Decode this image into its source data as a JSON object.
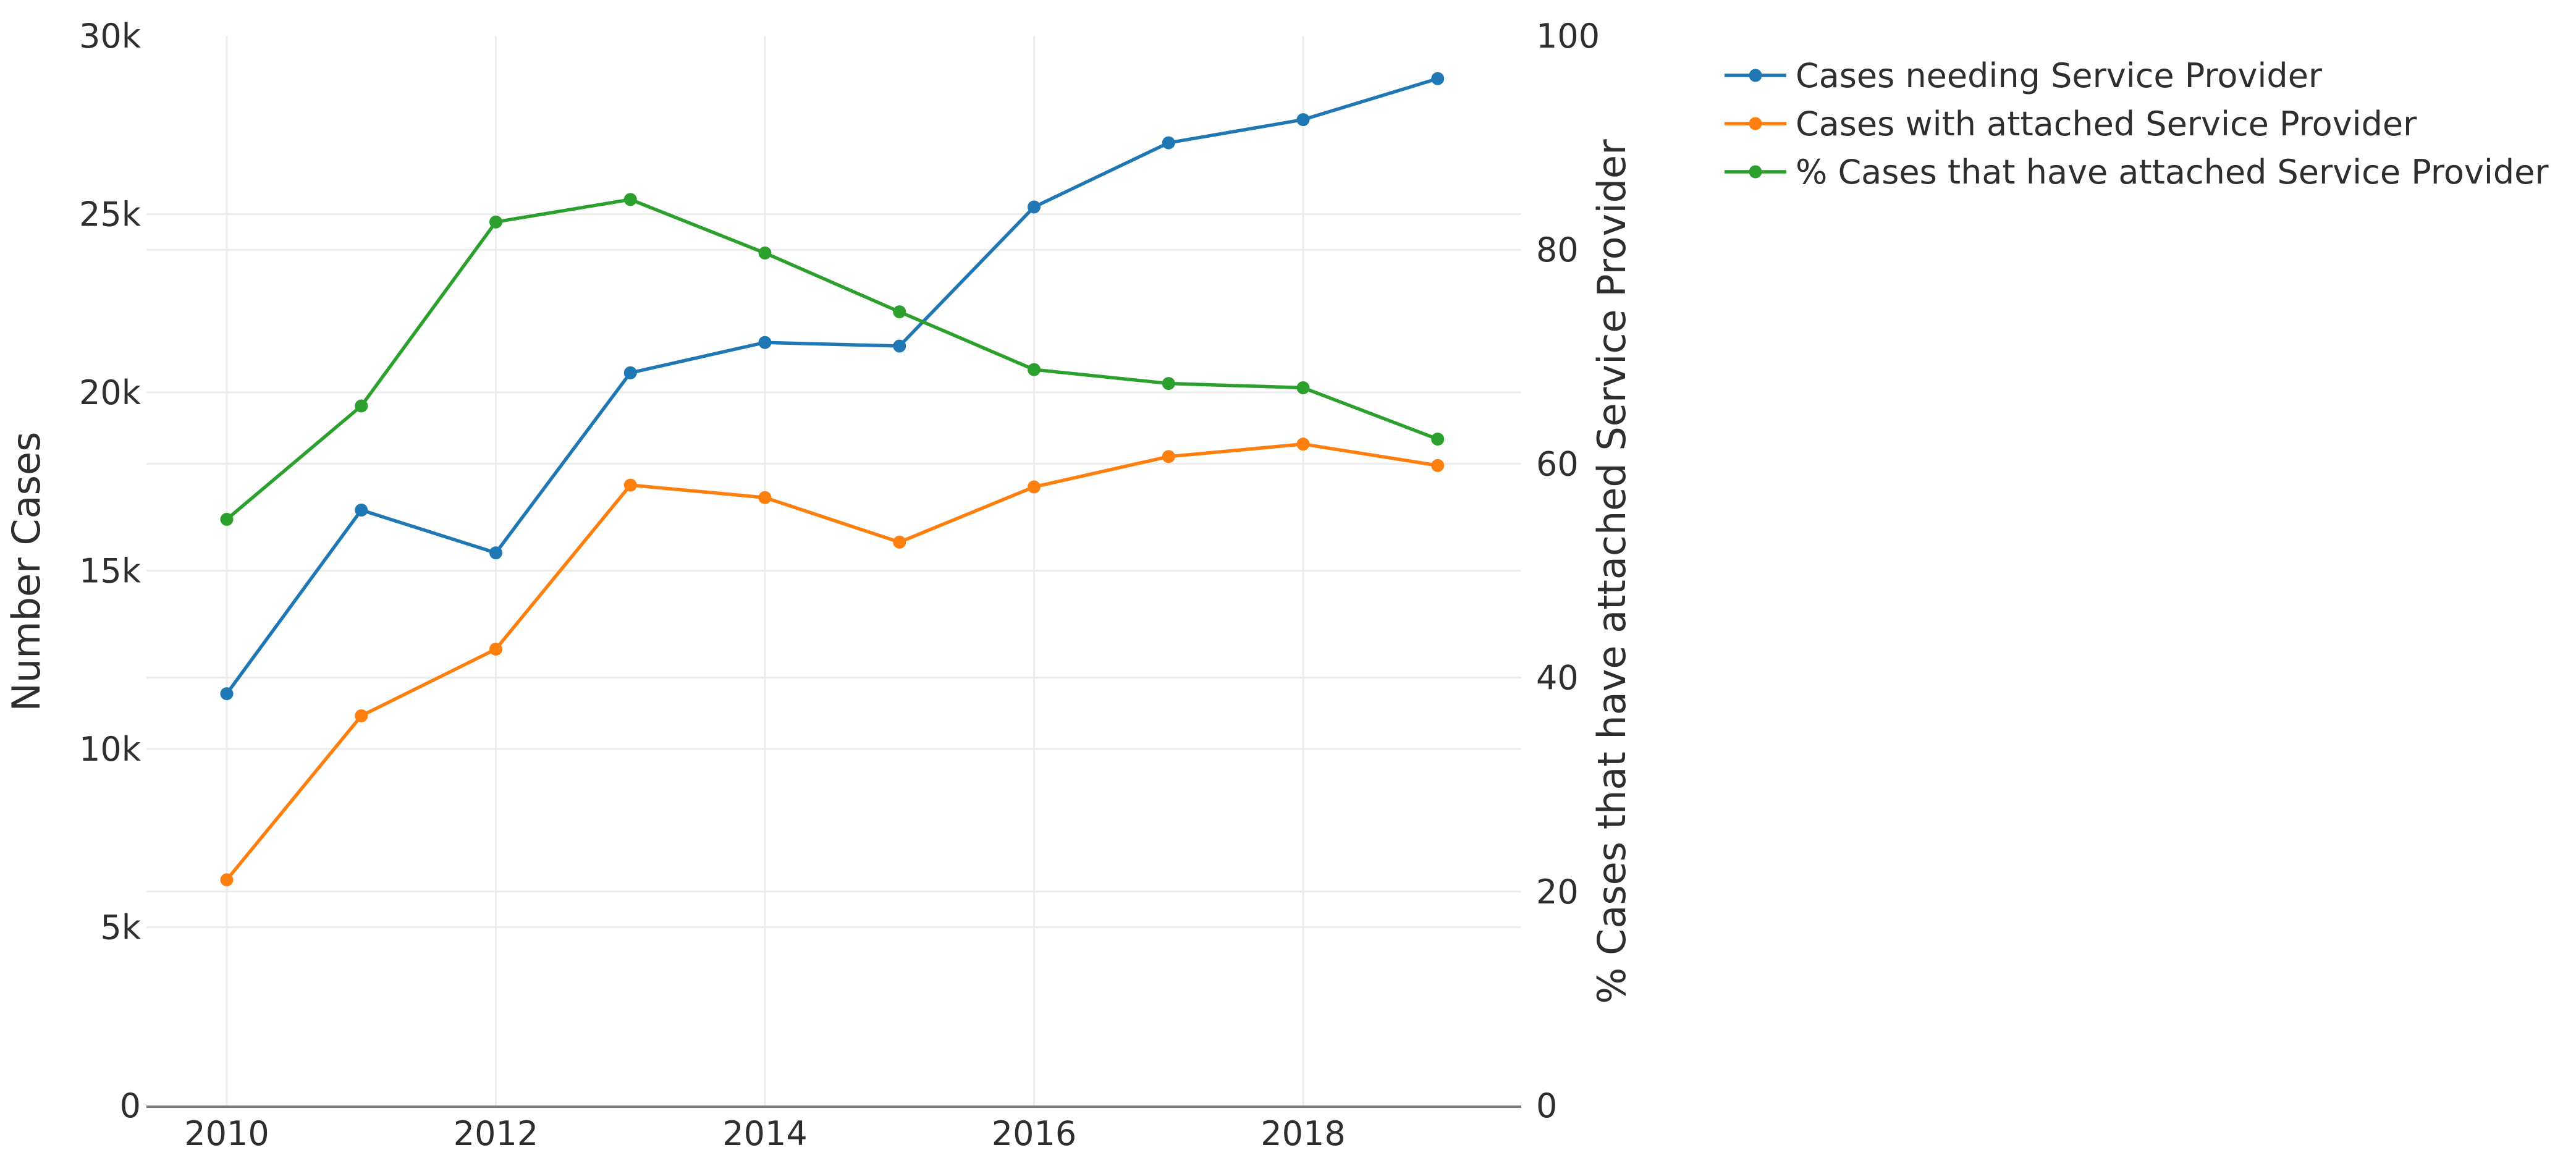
{
  "page": {
    "background": "#ffffff",
    "text_color": "#2e2e2e",
    "grid_color": "#ececec",
    "axis_line_color": "#7a7a7a"
  },
  "chart_data": {
    "type": "line",
    "x": [
      2010,
      2011,
      2012,
      2013,
      2014,
      2015,
      2016,
      2017,
      2018,
      2019
    ],
    "series": [
      {
        "name": "Cases needing Service Provider",
        "color": "#1f77b4",
        "yaxis": "left",
        "values": [
          11550,
          16700,
          15500,
          20550,
          21400,
          21300,
          25200,
          27000,
          27650,
          28800
        ]
      },
      {
        "name": "Cases with attached Service Provider",
        "color": "#ff7f0e",
        "yaxis": "left",
        "values": [
          6330,
          10930,
          12800,
          17400,
          17050,
          15800,
          17350,
          18200,
          18550,
          17950
        ]
      },
      {
        "name": "% Cases that have attached Service Provider",
        "color": "#2ca02c",
        "yaxis": "right",
        "values": [
          54.8,
          65.4,
          82.6,
          84.7,
          79.7,
          74.2,
          68.8,
          67.5,
          67.1,
          62.3
        ]
      }
    ],
    "left_axis": {
      "title": "Number Cases",
      "range": [
        0,
        30000
      ],
      "ticks": [
        {
          "v": 0,
          "label": "0"
        },
        {
          "v": 5000,
          "label": "5k"
        },
        {
          "v": 10000,
          "label": "10k"
        },
        {
          "v": 15000,
          "label": "15k"
        },
        {
          "v": 20000,
          "label": "20k"
        },
        {
          "v": 25000,
          "label": "25k"
        },
        {
          "v": 30000,
          "label": "30k"
        }
      ]
    },
    "right_axis": {
      "title": "% Cases that have attached Service Provider",
      "range": [
        0,
        100
      ],
      "ticks": [
        {
          "v": 0,
          "label": "0"
        },
        {
          "v": 20,
          "label": "20"
        },
        {
          "v": 40,
          "label": "40"
        },
        {
          "v": 60,
          "label": "60"
        },
        {
          "v": 80,
          "label": "80"
        },
        {
          "v": 100,
          "label": "100"
        }
      ]
    },
    "x_axis": {
      "ticks": [
        {
          "v": 2010,
          "label": "2010"
        },
        {
          "v": 2012,
          "label": "2012"
        },
        {
          "v": 2014,
          "label": "2014"
        },
        {
          "v": 2016,
          "label": "2016"
        },
        {
          "v": 2018,
          "label": "2018"
        }
      ]
    },
    "legend_position": "top-right",
    "grid": true
  }
}
